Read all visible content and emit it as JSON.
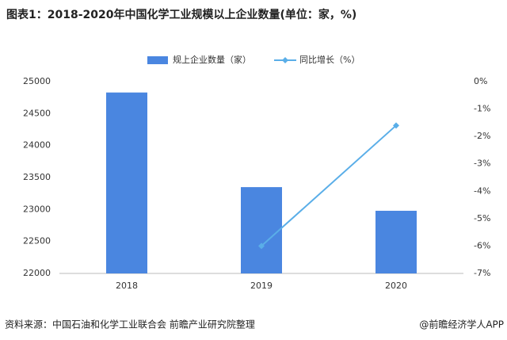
{
  "chart_data": {
    "type": "bar",
    "title": "图表1：2018-2020年中国化学工业规模以上企业数量(单位：家，%)",
    "categories": [
      "2018",
      "2019",
      "2020"
    ],
    "series": [
      {
        "name": "规上企业数量（家）",
        "color": "#4a86e0",
        "values": [
          24830,
          23350,
          22980
        ]
      },
      {
        "name": "同比增长（%）",
        "color": "#5aaee8",
        "type": "line",
        "axis": "y2",
        "values": [
          null,
          -6.0,
          -1.6
        ]
      }
    ],
    "ylim": [
      22000,
      25000
    ],
    "yticks": [
      22000,
      22500,
      23000,
      23500,
      24000,
      24500,
      25000
    ],
    "y2lim": [
      -7,
      0
    ],
    "y2ticks": [
      {
        "value": -7,
        "label": "-7%"
      },
      {
        "value": -6,
        "label": "-6%"
      },
      {
        "value": -5,
        "label": "-5%"
      },
      {
        "value": -4,
        "label": "-4%"
      },
      {
        "value": -3,
        "label": "-3%"
      },
      {
        "value": -2,
        "label": "-2%"
      },
      {
        "value": -1,
        "label": "-1%"
      },
      {
        "value": 0,
        "label": "0%"
      }
    ],
    "grid": false,
    "legend": "top",
    "source": "资料来源：中国石油和化学工业联合会 前瞻产业研究院整理",
    "credit": "@前瞻经济学人APP"
  }
}
